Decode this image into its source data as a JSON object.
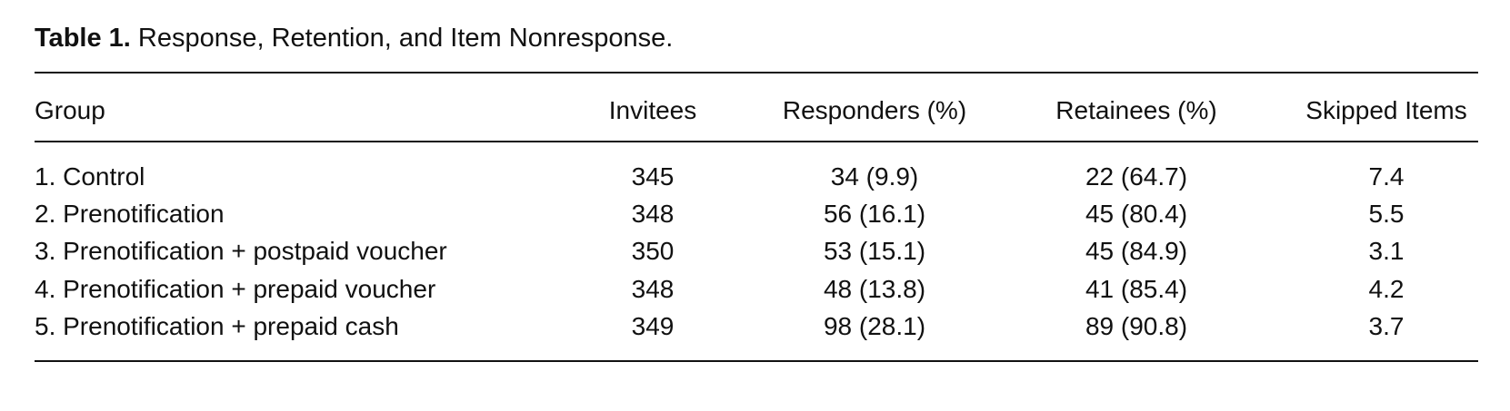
{
  "caption": {
    "label": "Table 1.",
    "text": "Response, Retention, and Item Nonresponse."
  },
  "table": {
    "headers": [
      "Group",
      "Invitees",
      "Responders (%)",
      "Retainees (%)",
      "Skipped Items"
    ],
    "rows": [
      [
        "1. Control",
        "345",
        "34 (9.9)",
        "22 (64.7)",
        "7.4"
      ],
      [
        "2. Prenotification",
        "348",
        "56 (16.1)",
        "45 (80.4)",
        "5.5"
      ],
      [
        "3. Prenotification + postpaid voucher",
        "350",
        "53 (15.1)",
        "45 (84.9)",
        "3.1"
      ],
      [
        "4. Prenotification + prepaid voucher",
        "348",
        "48 (13.8)",
        "41 (85.4)",
        "4.2"
      ],
      [
        "5. Prenotification + prepaid cash",
        "349",
        "98 (28.1)",
        "89 (90.8)",
        "3.7"
      ]
    ]
  }
}
